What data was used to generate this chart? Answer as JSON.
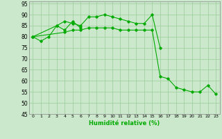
{
  "x": [
    0,
    1,
    2,
    3,
    4,
    5,
    6,
    7,
    8,
    9,
    10,
    11,
    12,
    13,
    14,
    15,
    16,
    17,
    18,
    19,
    20,
    21,
    22,
    23
  ],
  "series": {
    "s1": [
      80,
      78,
      80,
      85,
      87,
      86,
      85,
      89,
      89,
      90,
      89,
      88,
      87,
      86,
      86,
      90,
      75,
      null,
      null,
      null,
      null,
      null,
      null,
      null
    ],
    "s2": [
      80,
      null,
      null,
      85,
      83,
      87,
      84,
      null,
      null,
      null,
      null,
      null,
      null,
      null,
      null,
      null,
      null,
      null,
      null,
      null,
      null,
      null,
      null,
      null
    ],
    "s3": [
      80,
      null,
      null,
      null,
      82,
      83,
      83,
      84,
      84,
      84,
      84,
      83,
      83,
      83,
      83,
      83,
      62,
      61,
      57,
      56,
      55,
      55,
      58,
      54
    ]
  },
  "xlabel": "Humidité relative (%)",
  "ylim": [
    45,
    96
  ],
  "xlim": [
    -0.5,
    23.5
  ],
  "yticks": [
    45,
    50,
    55,
    60,
    65,
    70,
    75,
    80,
    85,
    90,
    95
  ],
  "xticks": [
    0,
    1,
    2,
    3,
    4,
    5,
    6,
    7,
    8,
    9,
    10,
    11,
    12,
    13,
    14,
    15,
    16,
    17,
    18,
    19,
    20,
    21,
    22,
    23
  ],
  "line_color": "#00aa00",
  "bg_color": "#cce8cc",
  "grid_color": "#99cc99"
}
